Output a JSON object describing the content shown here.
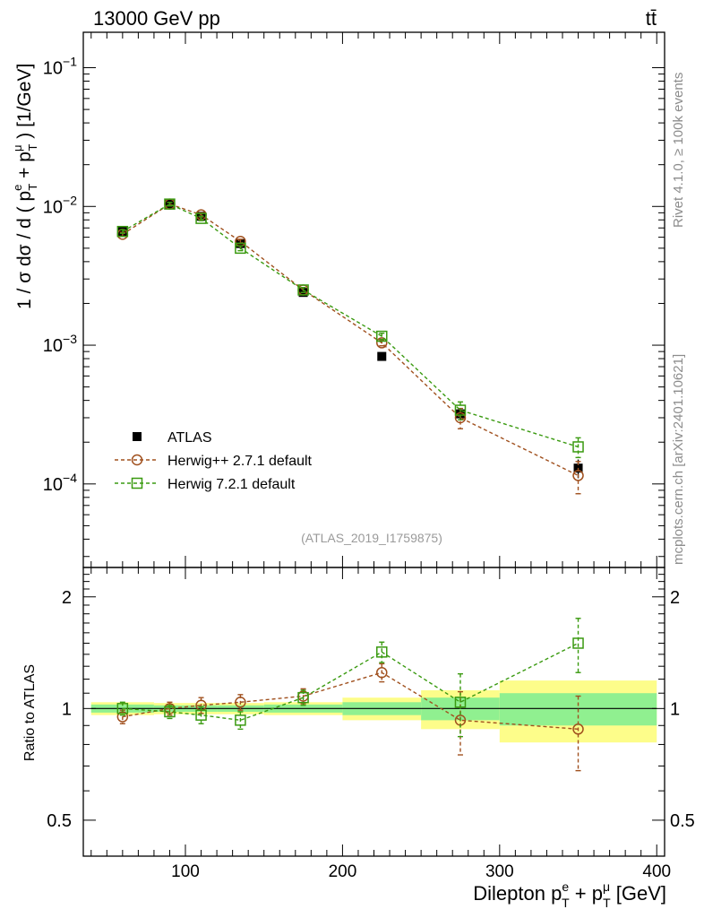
{
  "header": {
    "left": "13000 GeV pp",
    "right": "tt̄"
  },
  "side": {
    "rivet": "Rivet 4.1.0, ≥ 100k events",
    "mcplots": "mcplots.cern.ch [arXiv:2401.10621]"
  },
  "chart_data": [
    {
      "type": "line",
      "panel": "main",
      "ylabel_parts": [
        "1 / σ  dσ / d ( p",
        "e",
        "T",
        " + p",
        "μ",
        "T",
        " ) [1/GeV]"
      ],
      "yscale": "log",
      "ylim": [
        2.5e-05,
        0.18
      ],
      "xlim": [
        35,
        405
      ],
      "y_tick_labels": [
        {
          "value": 0.1,
          "base": "10",
          "exp": "−1"
        },
        {
          "value": 0.01,
          "base": "10",
          "exp": "−2"
        },
        {
          "value": 0.001,
          "base": "10",
          "exp": "−3"
        },
        {
          "value": 0.0001,
          "base": "10",
          "exp": "−4"
        }
      ],
      "watermark": "(ATLAS_2019_I1759875)",
      "legend_position": "lower-left",
      "series": [
        {
          "name": "ATLAS",
          "style": "data",
          "color": "#000000",
          "x": [
            60,
            90,
            110,
            135,
            175,
            225,
            275,
            350
          ],
          "y": [
            0.0066,
            0.0104,
            0.0085,
            0.0054,
            0.0024,
            0.00083,
            0.00032,
            0.00013
          ],
          "err": [
            0.0003,
            0.0004,
            0.0003,
            0.0002,
            0.0001,
            4e-05,
            3e-05,
            2e-05
          ]
        },
        {
          "name": "Herwig++ 2.7.1 default",
          "style": "circle",
          "color": "#a0501e",
          "x": [
            60,
            90,
            110,
            135,
            175,
            225,
            275,
            350
          ],
          "y": [
            0.0063,
            0.0104,
            0.0087,
            0.0056,
            0.0025,
            0.00104,
            0.0003,
            0.000115
          ],
          "err": [
            0.0002,
            0.0003,
            0.0003,
            0.0002,
            0.0001,
            5e-05,
            5e-05,
            3e-05
          ]
        },
        {
          "name": "Herwig 7.2.1 default",
          "style": "square",
          "color": "#3a9a10",
          "x": [
            60,
            90,
            110,
            135,
            175,
            225,
            275,
            350
          ],
          "y": [
            0.0066,
            0.0104,
            0.0082,
            0.005,
            0.0025,
            0.00116,
            0.00034,
            0.000185
          ],
          "err": [
            0.0002,
            0.0003,
            0.0003,
            0.0002,
            0.0001,
            6e-05,
            5e-05,
            3e-05
          ]
        }
      ]
    },
    {
      "type": "line",
      "panel": "ratio",
      "ylabel": "Ratio to ATLAS",
      "xlabel_parts": [
        "Dilepton p",
        "e",
        "T",
        " + p",
        "μ",
        "T",
        " [GeV]"
      ],
      "yscale": "log",
      "ylim": [
        0.4,
        2.4
      ],
      "xlim": [
        35,
        405
      ],
      "x_tick_labels": [
        "100",
        "200",
        "300",
        "400"
      ],
      "x_tick_values": [
        100,
        200,
        300,
        400
      ],
      "y_tick_labels": [
        "2",
        "1",
        "0.5"
      ],
      "y_tick_values": [
        2,
        1,
        0.5
      ],
      "bands": [
        {
          "x0": 40,
          "x1": 80,
          "inner": 0.025,
          "outer": 0.04
        },
        {
          "x0": 80,
          "x1": 100,
          "inner": 0.02,
          "outer": 0.035
        },
        {
          "x0": 100,
          "x1": 120,
          "inner": 0.02,
          "outer": 0.035
        },
        {
          "x0": 120,
          "x1": 150,
          "inner": 0.02,
          "outer": 0.035
        },
        {
          "x0": 150,
          "x1": 200,
          "inner": 0.025,
          "outer": 0.04
        },
        {
          "x0": 200,
          "x1": 250,
          "inner": 0.04,
          "outer": 0.07
        },
        {
          "x0": 250,
          "x1": 300,
          "inner": 0.07,
          "outer": 0.12
        },
        {
          "x0": 300,
          "x1": 400,
          "inner": 0.1,
          "outer": 0.19
        }
      ],
      "series": [
        {
          "name": "Herwig++ 2.7.1 default",
          "style": "circle",
          "color": "#a0501e",
          "x": [
            60,
            90,
            110,
            135,
            175,
            225,
            275,
            350
          ],
          "y": [
            0.95,
            1.0,
            1.02,
            1.04,
            1.08,
            1.25,
            0.93,
            0.88
          ],
          "err": [
            0.04,
            0.04,
            0.05,
            0.05,
            0.05,
            0.07,
            0.18,
            0.2
          ]
        },
        {
          "name": "Herwig 7.2.1 default",
          "style": "square",
          "color": "#3a9a10",
          "x": [
            60,
            90,
            110,
            135,
            175,
            225,
            275,
            350
          ],
          "y": [
            1.0,
            0.98,
            0.96,
            0.93,
            1.07,
            1.42,
            1.04,
            1.5
          ],
          "err": [
            0.04,
            0.04,
            0.05,
            0.05,
            0.05,
            0.09,
            0.2,
            0.25
          ]
        }
      ]
    }
  ]
}
